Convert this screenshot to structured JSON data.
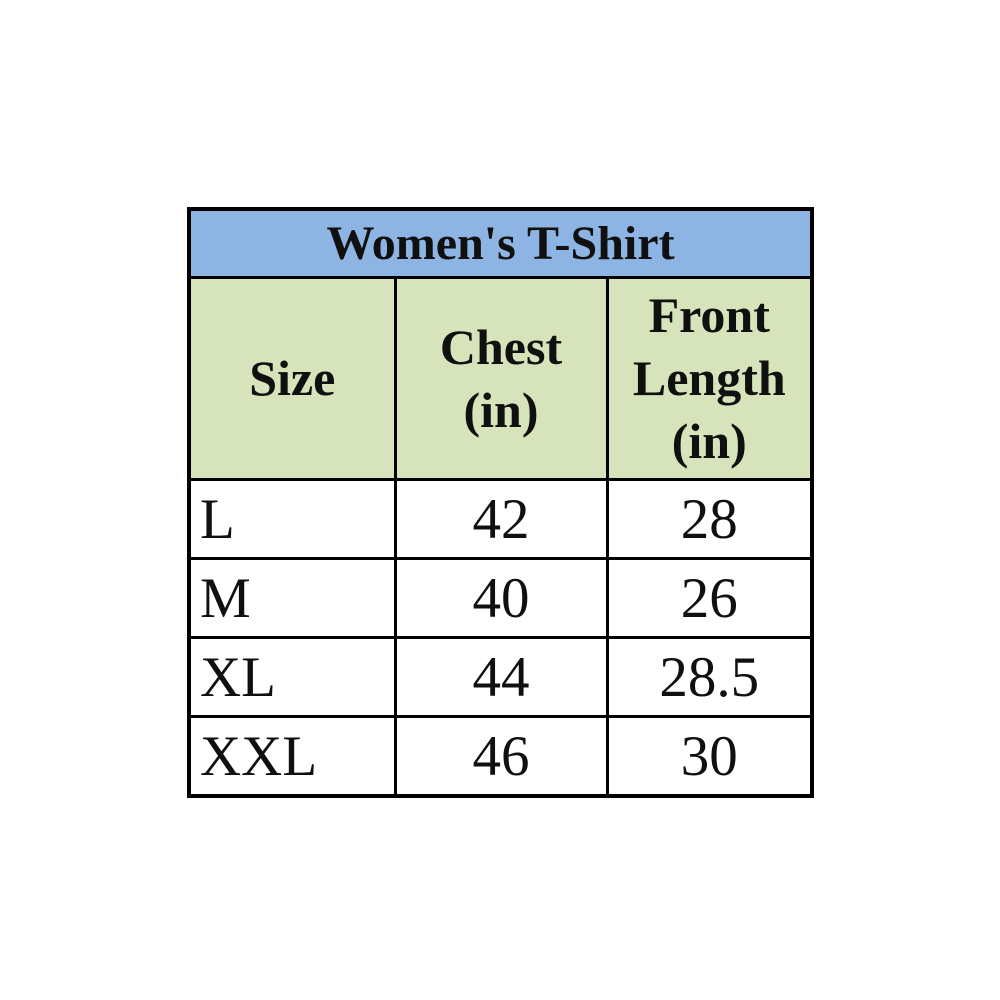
{
  "table": {
    "title": "Women's T-Shirt",
    "columns": [
      {
        "label": "Size"
      },
      {
        "label": "Chest\n(in)"
      },
      {
        "label": "Front\nLength\n(in)"
      }
    ],
    "rows": [
      {
        "size": "L",
        "chest": "42",
        "front_length": "28"
      },
      {
        "size": "M",
        "chest": "40",
        "front_length": "26"
      },
      {
        "size": "XL",
        "chest": "44",
        "front_length": "28.5"
      },
      {
        "size": "XXL",
        "chest": "46",
        "front_length": "30"
      }
    ],
    "colors": {
      "title_background": "#8DB4E2",
      "header_background": "#D7E3BA",
      "border": "#000000",
      "text": "#101010"
    }
  },
  "chart_data": {
    "type": "table",
    "title": "Women's T-Shirt",
    "columns": [
      "Size",
      "Chest (in)",
      "Front Length (in)"
    ],
    "rows": [
      [
        "L",
        42,
        28
      ],
      [
        "M",
        40,
        26
      ],
      [
        "XL",
        44,
        28.5
      ],
      [
        "XXL",
        46,
        30
      ]
    ]
  }
}
